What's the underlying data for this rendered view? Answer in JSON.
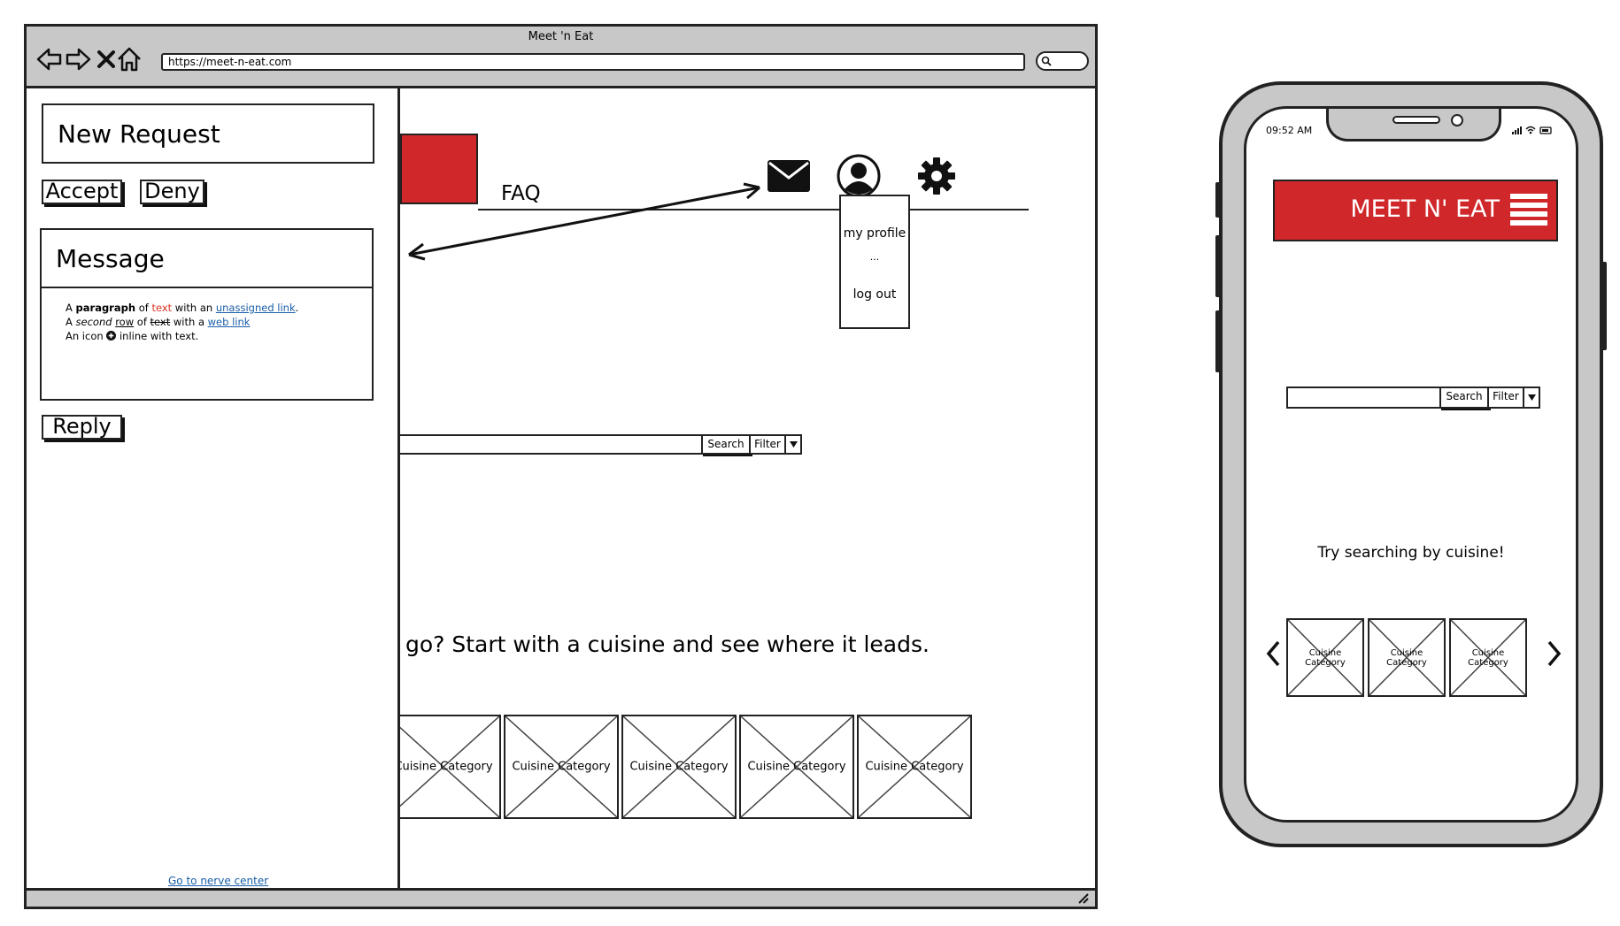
{
  "browser": {
    "title": "Meet 'n Eat",
    "url": "https://meet-n-eat.com"
  },
  "side_panel": {
    "new_request_title": "New Request",
    "accept_label": "Accept",
    "deny_label": "Deny",
    "message_title": "Message",
    "message_body": {
      "l1_a": "A ",
      "l1_b": "paragraph",
      "l1_c": " of ",
      "l1_d": "text",
      "l1_e": " with an ",
      "l1_f": "unassigned link",
      "l1_g": ".",
      "l2_a": "A ",
      "l2_b": "second",
      "l2_c": " ",
      "l2_d": "row",
      "l2_e": " of ",
      "l2_f": "text",
      "l2_g": " with a ",
      "l2_h": "web link",
      "l3_a": "An icon ",
      "l3_b": " inline with text."
    },
    "reply_label": "Reply",
    "nerve_center_link": "Go to nerve center"
  },
  "main": {
    "faq_label": "FAQ",
    "dropdown": {
      "items": [
        "my profile",
        "...",
        "log out"
      ]
    },
    "search": {
      "search_label": "Search",
      "filter_label": "Filter"
    },
    "tagline": "go? Start with a cuisine and see where it leads.",
    "categories": [
      "Cuisine Category",
      "Cuisine Category",
      "Cuisine Category",
      "Cuisine Category",
      "Cuisine Category"
    ]
  },
  "phone": {
    "time": "09:52 AM",
    "header_title": "MEET N' EAT",
    "search": {
      "search_label": "Search",
      "filter_label": "Filter"
    },
    "prompt": "Try searching by cuisine!",
    "categories": [
      "Cuisine Category",
      "Cuisine Category",
      "Cuisine Category"
    ]
  },
  "colors": {
    "accent_red": "#d0272a",
    "chrome_gray": "#c8c8c8",
    "link_blue": "#1a5ea8"
  }
}
